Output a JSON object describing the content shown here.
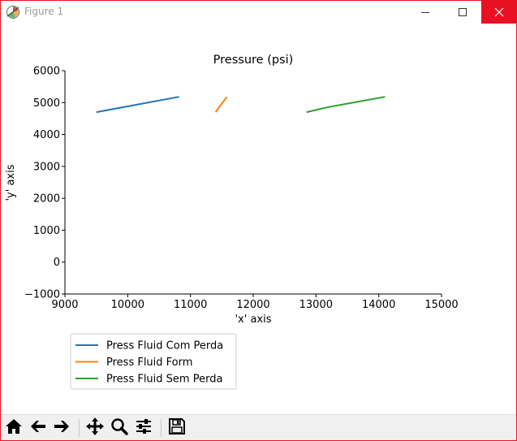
{
  "window": {
    "title": "Figure 1",
    "buttons": [
      "minimize-icon",
      "maximize-icon",
      "close-icon"
    ],
    "close_color": "#e81123"
  },
  "toolbar": {
    "icons": [
      "home-icon",
      "back-arrow-icon",
      "forward-arrow-icon",
      "pan-icon",
      "zoom-icon",
      "subplots-config-icon",
      "save-icon"
    ]
  },
  "chart_data": {
    "type": "line",
    "title": "Pressure (psi)",
    "xlabel": "'x' axis",
    "ylabel": "'y' axis",
    "xlim": [
      9000,
      15000
    ],
    "ylim": [
      -1000,
      6000
    ],
    "xticks": [
      9000,
      10000,
      11000,
      12000,
      13000,
      14000,
      15000
    ],
    "yticks": [
      -1000,
      0,
      1000,
      2000,
      3000,
      4000,
      5000,
      6000
    ],
    "grid": false,
    "legend_position": "below-left, outside axes",
    "series": [
      {
        "name": "Press Fluid Com Perda",
        "color": "#1f77b4",
        "x": [
          9500,
          10820
        ],
        "y": [
          4700,
          5180
        ]
      },
      {
        "name": "Press Fluid Form",
        "color": "#ff7f0e",
        "x": [
          11400,
          11580
        ],
        "y": [
          4700,
          5180
        ]
      },
      {
        "name": "Press Fluid Sem Perda",
        "color": "#2ca02c",
        "x": [
          12850,
          13200,
          14100
        ],
        "y": [
          4700,
          4860,
          5180
        ]
      }
    ]
  }
}
